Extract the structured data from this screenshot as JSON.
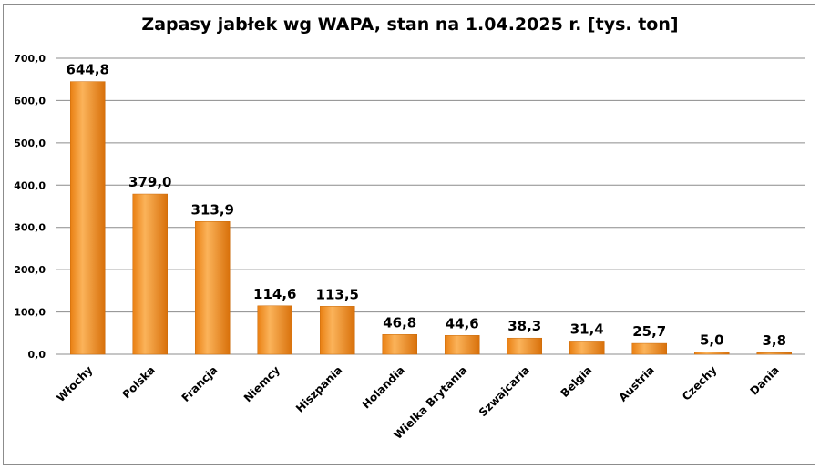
{
  "chart_data": {
    "type": "bar",
    "title": "Zapasy jabłek wg WAPA, stan na 1.04.2025  r. [tys. ton]",
    "categories": [
      "Włochy",
      "Polska",
      "Francja",
      "Niemcy",
      "Hiszpania",
      "Holandia",
      "Wielka Brytania",
      "Szwajcaria",
      "Belgia",
      "Austria",
      "Czechy",
      "Dania"
    ],
    "values": [
      644.8,
      379.0,
      313.9,
      114.6,
      113.5,
      46.8,
      44.6,
      38.3,
      31.4,
      25.7,
      5.0,
      3.8
    ],
    "data_labels": [
      "644,8",
      "379,0",
      "313,9",
      "114,6",
      "113,5",
      "46,8",
      "44,6",
      "38,3",
      "31,4",
      "25,7",
      "5,0",
      "3,8"
    ],
    "yticks": [
      "0,0",
      "100,0",
      "200,0",
      "300,0",
      "400,0",
      "500,0",
      "600,0",
      "700,0"
    ],
    "ylim": [
      0,
      700
    ],
    "xlabel": "",
    "ylabel": "",
    "grid": true,
    "legend": "none",
    "colors": {
      "bar": "#f7941d",
      "bar_light": "#fbb35a",
      "bar_dark": "#d9730b",
      "grid": "#8c8c8c"
    }
  }
}
